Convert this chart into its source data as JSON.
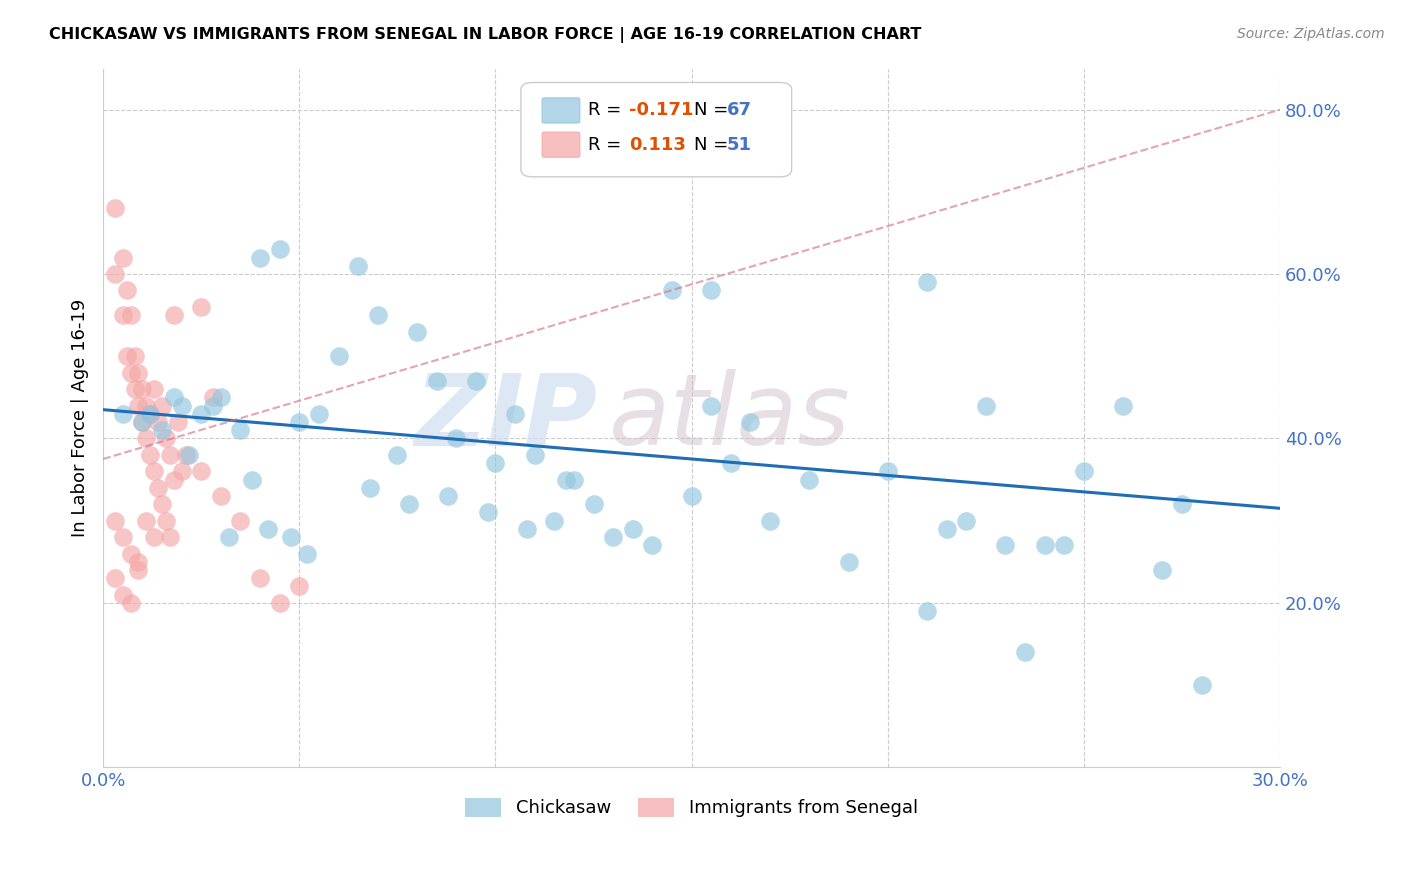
{
  "title": "CHICKASAW VS IMMIGRANTS FROM SENEGAL IN LABOR FORCE | AGE 16-19 CORRELATION CHART",
  "source": "Source: ZipAtlas.com",
  "ylabel": "In Labor Force | Age 16-19",
  "xmin": 0.0,
  "xmax": 0.3,
  "ymin": 0.0,
  "ymax": 0.85,
  "blue_color": "#92c5de",
  "pink_color": "#f4a6a6",
  "trend_blue": "#1f6db5",
  "trend_pink": "#d4748a",
  "watermark_zip": "ZIP",
  "watermark_atlas": "atlas",
  "blue_scatter_x": [
    0.005,
    0.01,
    0.015,
    0.02,
    0.025,
    0.03,
    0.035,
    0.04,
    0.045,
    0.05,
    0.055,
    0.06,
    0.065,
    0.07,
    0.075,
    0.08,
    0.085,
    0.09,
    0.095,
    0.1,
    0.105,
    0.11,
    0.115,
    0.12,
    0.125,
    0.13,
    0.135,
    0.14,
    0.15,
    0.155,
    0.16,
    0.165,
    0.17,
    0.18,
    0.19,
    0.2,
    0.21,
    0.215,
    0.22,
    0.225,
    0.23,
    0.24,
    0.25,
    0.26,
    0.27,
    0.275,
    0.28,
    0.012,
    0.018,
    0.022,
    0.028,
    0.032,
    0.038,
    0.042,
    0.048,
    0.052,
    0.068,
    0.078,
    0.088,
    0.098,
    0.108,
    0.118,
    0.145,
    0.155,
    0.21,
    0.235,
    0.245
  ],
  "blue_scatter_y": [
    0.43,
    0.42,
    0.41,
    0.44,
    0.43,
    0.45,
    0.41,
    0.62,
    0.63,
    0.42,
    0.43,
    0.5,
    0.61,
    0.55,
    0.38,
    0.53,
    0.47,
    0.4,
    0.47,
    0.37,
    0.43,
    0.38,
    0.3,
    0.35,
    0.32,
    0.28,
    0.29,
    0.27,
    0.33,
    0.44,
    0.37,
    0.42,
    0.3,
    0.35,
    0.25,
    0.36,
    0.19,
    0.29,
    0.3,
    0.44,
    0.27,
    0.27,
    0.36,
    0.44,
    0.24,
    0.32,
    0.1,
    0.43,
    0.45,
    0.38,
    0.44,
    0.28,
    0.35,
    0.29,
    0.28,
    0.26,
    0.34,
    0.32,
    0.33,
    0.31,
    0.29,
    0.35,
    0.58,
    0.58,
    0.59,
    0.14,
    0.27
  ],
  "pink_scatter_x": [
    0.003,
    0.005,
    0.006,
    0.007,
    0.008,
    0.009,
    0.01,
    0.011,
    0.012,
    0.013,
    0.014,
    0.015,
    0.016,
    0.017,
    0.018,
    0.019,
    0.02,
    0.021,
    0.003,
    0.005,
    0.006,
    0.007,
    0.008,
    0.009,
    0.01,
    0.011,
    0.012,
    0.013,
    0.014,
    0.015,
    0.016,
    0.017,
    0.018,
    0.003,
    0.005,
    0.007,
    0.009,
    0.011,
    0.013,
    0.003,
    0.005,
    0.007,
    0.009,
    0.025,
    0.03,
    0.035,
    0.04,
    0.045,
    0.025,
    0.028,
    0.05
  ],
  "pink_scatter_y": [
    0.68,
    0.62,
    0.58,
    0.55,
    0.5,
    0.48,
    0.46,
    0.44,
    0.43,
    0.46,
    0.42,
    0.44,
    0.4,
    0.38,
    0.55,
    0.42,
    0.36,
    0.38,
    0.6,
    0.55,
    0.5,
    0.48,
    0.46,
    0.44,
    0.42,
    0.4,
    0.38,
    0.36,
    0.34,
    0.32,
    0.3,
    0.28,
    0.35,
    0.3,
    0.28,
    0.26,
    0.25,
    0.3,
    0.28,
    0.23,
    0.21,
    0.2,
    0.24,
    0.36,
    0.33,
    0.3,
    0.23,
    0.2,
    0.56,
    0.45,
    0.22
  ],
  "blue_trend_x": [
    0.0,
    0.3
  ],
  "blue_trend_y": [
    0.435,
    0.315
  ],
  "pink_trend_x": [
    0.0,
    0.3
  ],
  "pink_trend_y": [
    0.375,
    0.8
  ]
}
